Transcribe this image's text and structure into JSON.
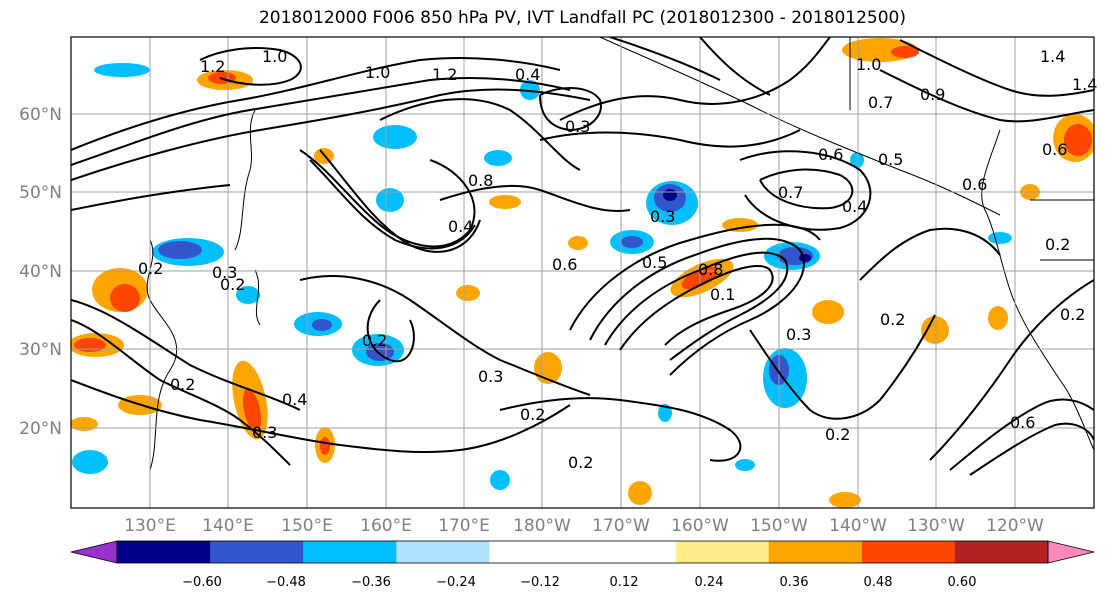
{
  "title": "2018012000 F006 850 hPa PV, IVT Landfall PC (2018012300 - 2018012500)",
  "map": {
    "lat_labels": [
      "60°N",
      "50°N",
      "40°N",
      "30°N",
      "20°N"
    ],
    "lon_labels": [
      "130°E",
      "140°E",
      "150°E",
      "160°E",
      "170°E",
      "180°W",
      "170°W",
      "160°W",
      "150°W",
      "140°W",
      "130°W",
      "120°W"
    ],
    "contour_labels": [
      "1.0",
      "1.2",
      "1.0",
      "1.2",
      "0.4",
      "0.3",
      "1.0",
      "1.4",
      "0.7",
      "0.9",
      "1.4",
      "0.6",
      "0.5",
      "0.6",
      "0.7",
      "0.4",
      "0.6",
      "0.8",
      "0.3",
      "0.6",
      "0.5",
      "0.8",
      "0.4",
      "0.2",
      "0.3",
      "0.2",
      "0.2",
      "0.3",
      "0.2",
      "0.3",
      "0.2",
      "0.2",
      "0.2",
      "0.3",
      "0.2",
      "0.4",
      "0.6",
      "0.2",
      "0.1",
      "0.2"
    ]
  },
  "colorbar": {
    "colors": [
      "#9932cc",
      "#00008b",
      "#3355cc",
      "#00bfff",
      "#b0e2ff",
      "#ffffff",
      "#ffffff",
      "#ffec8b",
      "#ffa500",
      "#ff4500",
      "#b22222",
      "#ff88bb"
    ],
    "tick_labels": [
      "−0.60",
      "−0.48",
      "−0.36",
      "−0.24",
      "−0.12",
      "0.12",
      "0.24",
      "0.36",
      "0.48",
      "0.60"
    ]
  }
}
